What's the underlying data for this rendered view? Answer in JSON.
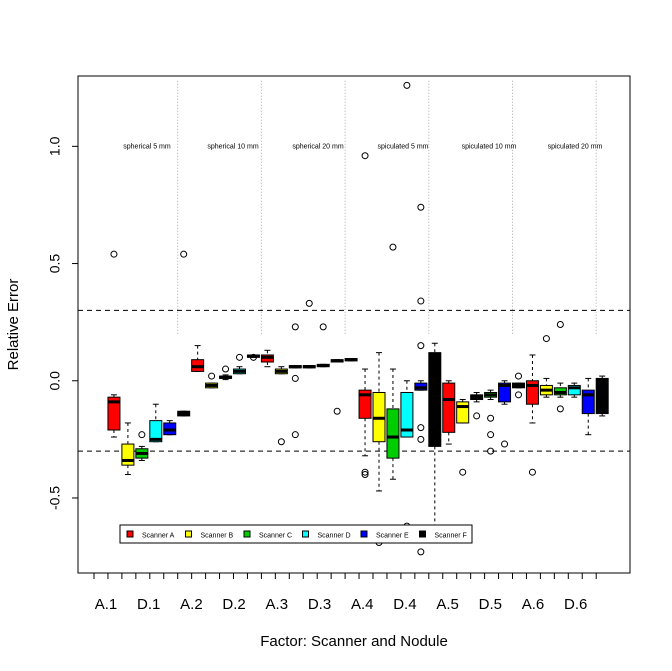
{
  "chart_data": {
    "type": "boxplot",
    "title": "",
    "xlabel": "Factor: Scanner and Nodule",
    "ylabel": "Relative Error",
    "ylim": [
      -0.82,
      1.3
    ],
    "y_ticks": [
      -0.5,
      0.0,
      0.5,
      1.0
    ],
    "y_tick_labels": [
      "-0.5",
      "0.0",
      "0.5",
      "1.0"
    ],
    "x_tick_labels": [
      "A.1",
      "D.1",
      "A.2",
      "D.2",
      "A.3",
      "D.3",
      "A.4",
      "D.4",
      "A.5",
      "D.5",
      "A.6",
      "D.6"
    ],
    "x_label_positions": [
      1,
      7,
      13,
      19,
      25,
      31,
      37,
      43,
      49,
      55,
      61,
      67
    ],
    "reference_lines": [
      0.3,
      -0.3
    ],
    "group_separators": [
      7,
      13,
      19,
      25,
      31,
      37,
      43,
      49,
      55,
      61
    ],
    "group_labels": [
      {
        "text": "spherical 5 mm",
        "at": 4
      },
      {
        "text": "spherical 10 mm",
        "at": 10
      },
      {
        "text": "spherical 20 mm",
        "at": 16
      },
      {
        "text": "spiculated 5 mm",
        "at": 22
      },
      {
        "text": "spiculated 10 mm",
        "at": 28
      },
      {
        "text": "spiculated 20 mm",
        "at": 34
      }
    ],
    "grid": false,
    "legend": {
      "position": "bottom-left",
      "entries": [
        {
          "label": "Scanner A",
          "color": "#ff0000"
        },
        {
          "label": "Scanner B",
          "color": "#ffff00"
        },
        {
          "label": "Scanner C",
          "color": "#00cd00"
        },
        {
          "label": "Scanner D",
          "color": "#00ffff"
        },
        {
          "label": "Scanner E",
          "color": "#0000ff"
        },
        {
          "label": "Scanner F",
          "color": "#000000"
        }
      ]
    },
    "boxes": [
      {
        "pos": 2,
        "scanner": "A",
        "q1": -0.21,
        "med": -0.09,
        "q3": -0.07,
        "wlo": -0.24,
        "whi": -0.06,
        "outliers": [
          0.54
        ]
      },
      {
        "pos": 3,
        "scanner": "B",
        "q1": -0.36,
        "med": -0.34,
        "q3": -0.27,
        "wlo": -0.4,
        "whi": -0.18,
        "outliers": []
      },
      {
        "pos": 4,
        "scanner": "C",
        "q1": -0.33,
        "med": -0.31,
        "q3": -0.29,
        "wlo": -0.34,
        "whi": -0.28,
        "outliers": [
          -0.23
        ]
      },
      {
        "pos": 5,
        "scanner": "D",
        "q1": -0.26,
        "med": -0.25,
        "q3": -0.17,
        "wlo": -0.26,
        "whi": -0.1,
        "outliers": []
      },
      {
        "pos": 6,
        "scanner": "E",
        "q1": -0.23,
        "med": -0.21,
        "q3": -0.18,
        "wlo": -0.23,
        "whi": -0.17,
        "outliers": []
      },
      {
        "pos": 7,
        "scanner": "F",
        "q1": -0.15,
        "med": -0.14,
        "q3": -0.13,
        "wlo": -0.15,
        "whi": -0.13,
        "outliers": [
          0.54
        ]
      },
      {
        "pos": 8,
        "scanner": "A",
        "q1": 0.04,
        "med": 0.06,
        "q3": 0.09,
        "wlo": 0.04,
        "whi": 0.15,
        "outliers": []
      },
      {
        "pos": 9,
        "scanner": "B",
        "q1": -0.03,
        "med": -0.02,
        "q3": -0.01,
        "wlo": -0.03,
        "whi": -0.01,
        "outliers": [
          0.02
        ]
      },
      {
        "pos": 10,
        "scanner": "C",
        "q1": 0.01,
        "med": 0.015,
        "q3": 0.02,
        "wlo": 0.005,
        "whi": 0.025,
        "outliers": [
          0.05
        ]
      },
      {
        "pos": 11,
        "scanner": "D",
        "q1": 0.03,
        "med": 0.04,
        "q3": 0.05,
        "wlo": 0.03,
        "whi": 0.06,
        "outliers": [
          0.1
        ]
      },
      {
        "pos": 12,
        "scanner": "E",
        "q1": 0.1,
        "med": 0.105,
        "q3": 0.11,
        "wlo": 0.1,
        "whi": 0.11,
        "outliers": [
          0.1
        ]
      },
      {
        "pos": 13,
        "scanner": "A",
        "q1": 0.08,
        "med": 0.1,
        "q3": 0.11,
        "wlo": 0.06,
        "whi": 0.13,
        "outliers": []
      },
      {
        "pos": 14,
        "scanner": "B",
        "q1": 0.03,
        "med": 0.04,
        "q3": 0.05,
        "wlo": 0.03,
        "whi": 0.06,
        "outliers": [
          -0.26
        ]
      },
      {
        "pos": 15,
        "scanner": "C",
        "q1": 0.055,
        "med": 0.06,
        "q3": 0.065,
        "wlo": 0.055,
        "whi": 0.065,
        "outliers": [
          0.23,
          0.01,
          -0.23
        ]
      },
      {
        "pos": 16,
        "scanner": "D",
        "q1": 0.055,
        "med": 0.06,
        "q3": 0.065,
        "wlo": 0.055,
        "whi": 0.065,
        "outliers": [
          0.33
        ]
      },
      {
        "pos": 17,
        "scanner": "E",
        "q1": 0.06,
        "med": 0.065,
        "q3": 0.07,
        "wlo": 0.06,
        "whi": 0.07,
        "outliers": [
          0.23
        ]
      },
      {
        "pos": 18,
        "scanner": "F",
        "q1": 0.08,
        "med": 0.085,
        "q3": 0.09,
        "wlo": 0.08,
        "whi": 0.09,
        "outliers": [
          -0.13
        ]
      },
      {
        "pos": 19,
        "scanner": "F",
        "q1": 0.085,
        "med": 0.09,
        "q3": 0.095,
        "wlo": 0.085,
        "whi": 0.095,
        "outliers": []
      },
      {
        "pos": 20,
        "scanner": "A",
        "q1": -0.16,
        "med": -0.06,
        "q3": -0.04,
        "wlo": -0.32,
        "whi": 0.05,
        "outliers": [
          0.96,
          -0.39,
          -0.4
        ]
      },
      {
        "pos": 21,
        "scanner": "B",
        "q1": -0.26,
        "med": -0.16,
        "q3": -0.05,
        "wlo": -0.47,
        "whi": 0.12,
        "outliers": [
          -0.69
        ]
      },
      {
        "pos": 22,
        "scanner": "C",
        "q1": -0.33,
        "med": -0.24,
        "q3": -0.12,
        "wlo": -0.42,
        "whi": 0.05,
        "outliers": [
          0.57
        ]
      },
      {
        "pos": 23,
        "scanner": "D",
        "q1": -0.24,
        "med": -0.21,
        "q3": -0.05,
        "wlo": -0.24,
        "whi": 0.0,
        "outliers": [
          1.26,
          -0.62
        ]
      },
      {
        "pos": 24,
        "scanner": "E",
        "q1": -0.04,
        "med": -0.03,
        "q3": -0.01,
        "wlo": -0.04,
        "whi": 0.0,
        "outliers": [
          0.74,
          0.34,
          0.15,
          -0.2,
          -0.25,
          -0.73
        ]
      },
      {
        "pos": 25,
        "scanner": "F",
        "q1": -0.28,
        "med": 0.09,
        "q3": 0.12,
        "wlo": -0.62,
        "whi": 0.16,
        "outliers": []
      },
      {
        "pos": 26,
        "scanner": "A",
        "q1": -0.22,
        "med": -0.08,
        "q3": -0.01,
        "wlo": -0.27,
        "whi": 0.0,
        "outliers": []
      },
      {
        "pos": 27,
        "scanner": "B",
        "q1": -0.18,
        "med": -0.11,
        "q3": -0.09,
        "wlo": -0.18,
        "whi": -0.08,
        "outliers": [
          -0.39
        ]
      },
      {
        "pos": 28,
        "scanner": "F",
        "q1": -0.08,
        "med": -0.07,
        "q3": -0.06,
        "wlo": -0.09,
        "whi": -0.05,
        "outliers": [
          -0.15
        ]
      },
      {
        "pos": 29,
        "scanner": "C",
        "q1": -0.07,
        "med": -0.06,
        "q3": -0.05,
        "wlo": -0.08,
        "whi": -0.04,
        "outliers": [
          -0.16,
          -0.23,
          -0.3
        ]
      },
      {
        "pos": 30,
        "scanner": "E",
        "q1": -0.09,
        "med": -0.02,
        "q3": -0.01,
        "wlo": -0.1,
        "whi": 0.0,
        "outliers": [
          -0.27
        ]
      },
      {
        "pos": 31,
        "scanner": "F",
        "q1": -0.03,
        "med": -0.02,
        "q3": -0.01,
        "wlo": -0.03,
        "whi": -0.01,
        "outliers": [
          0.02,
          -0.06
        ]
      },
      {
        "pos": 32,
        "scanner": "A",
        "q1": -0.1,
        "med": -0.02,
        "q3": 0.0,
        "wlo": -0.18,
        "whi": 0.11,
        "outliers": [
          -0.39
        ]
      },
      {
        "pos": 33,
        "scanner": "B",
        "q1": -0.06,
        "med": -0.04,
        "q3": -0.02,
        "wlo": -0.07,
        "whi": 0.01,
        "outliers": [
          0.18
        ]
      },
      {
        "pos": 34,
        "scanner": "C",
        "q1": -0.06,
        "med": -0.05,
        "q3": -0.03,
        "wlo": -0.07,
        "whi": -0.01,
        "outliers": [
          0.24,
          -0.12
        ]
      },
      {
        "pos": 35,
        "scanner": "D",
        "q1": -0.06,
        "med": -0.03,
        "q3": -0.02,
        "wlo": -0.07,
        "whi": -0.01,
        "outliers": []
      },
      {
        "pos": 36,
        "scanner": "E",
        "q1": -0.14,
        "med": -0.06,
        "q3": -0.04,
        "wlo": -0.23,
        "whi": 0.01,
        "outliers": []
      },
      {
        "pos": 37,
        "scanner": "F",
        "q1": -0.14,
        "med": 0.0,
        "q3": 0.01,
        "wlo": -0.15,
        "whi": 0.02,
        "outliers": []
      }
    ]
  }
}
